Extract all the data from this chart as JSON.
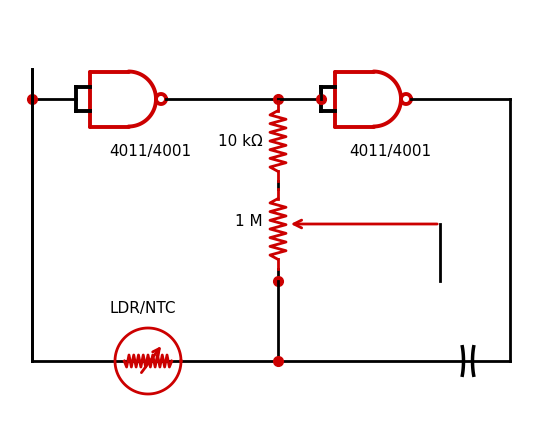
{
  "bg_color": "#ffffff",
  "red": "#cc0000",
  "black": "#000000",
  "label_4011_left": "4011/4001",
  "label_4011_right": "4011/4001",
  "label_10k": "10 kΩ",
  "label_1M": "1 M",
  "label_ldr": "LDR/NTC",
  "gate_lw": 2.8,
  "wire_lw": 2.0,
  "res_lw": 2.0,
  "dot_size": 7
}
